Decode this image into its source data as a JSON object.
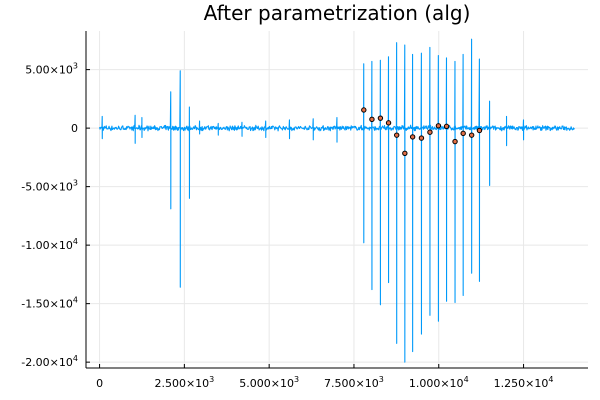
{
  "chart_data": {
    "type": "line",
    "title": "After parametrization (alg)",
    "xlabel": "",
    "ylabel": "",
    "xlim": [
      -400,
      14400
    ],
    "ylim": [
      -20500,
      8300
    ],
    "grid": true,
    "legend": "none",
    "x_ticks": [
      {
        "value": 0,
        "mant": "0",
        "exp": ""
      },
      {
        "value": 2500,
        "mant": "2.500×10",
        "exp": "3"
      },
      {
        "value": 5000,
        "mant": "5.000×10",
        "exp": "3"
      },
      {
        "value": 7500,
        "mant": "7.500×10",
        "exp": "3"
      },
      {
        "value": 10000,
        "mant": "1.000×10",
        "exp": "4"
      },
      {
        "value": 12500,
        "mant": "1.250×10",
        "exp": "4"
      }
    ],
    "y_ticks": [
      {
        "value": 5000,
        "mant": "5.00×10",
        "exp": "3"
      },
      {
        "value": 0,
        "mant": "0",
        "exp": ""
      },
      {
        "value": -5000,
        "mant": "-5.00×10",
        "exp": "3"
      },
      {
        "value": -10000,
        "mant": "-1.00×10",
        "exp": "4"
      },
      {
        "value": -15000,
        "mant": "-1.50×10",
        "exp": "4"
      },
      {
        "value": -20000,
        "mant": "-2.00×10",
        "exp": "4"
      }
    ],
    "series": [
      {
        "kind": "line",
        "color": "#009AFA",
        "x_start": 0,
        "x_end": 14000,
        "noise_amplitude": 250,
        "spikes": [
          {
            "x": 80,
            "ymax": 1000,
            "ymin": -900
          },
          {
            "x": 1050,
            "ymax": 1100,
            "ymin": -1300
          },
          {
            "x": 1250,
            "ymax": 900,
            "ymin": -800
          },
          {
            "x": 2100,
            "ymax": 3100,
            "ymin": -6900
          },
          {
            "x": 2380,
            "ymax": 4900,
            "ymin": -13600
          },
          {
            "x": 2650,
            "ymax": 1800,
            "ymin": -6000
          },
          {
            "x": 2950,
            "ymax": 600,
            "ymin": -500
          },
          {
            "x": 3500,
            "ymax": 400,
            "ymin": -600
          },
          {
            "x": 4200,
            "ymax": 500,
            "ymin": -700
          },
          {
            "x": 4900,
            "ymax": 600,
            "ymin": -800
          },
          {
            "x": 5600,
            "ymax": 700,
            "ymin": -900
          },
          {
            "x": 6300,
            "ymax": 800,
            "ymin": -1000
          },
          {
            "x": 7000,
            "ymax": 900,
            "ymin": -1200
          },
          {
            "x": 7790,
            "ymax": 5500,
            "ymin": -9800
          },
          {
            "x": 8030,
            "ymax": 5700,
            "ymin": -13800
          },
          {
            "x": 8280,
            "ymax": 5800,
            "ymin": -15100
          },
          {
            "x": 8520,
            "ymax": 6100,
            "ymin": -13200
          },
          {
            "x": 8760,
            "ymax": 7300,
            "ymin": -18400
          },
          {
            "x": 9000,
            "ymax": 7100,
            "ymin": -20000
          },
          {
            "x": 9230,
            "ymax": 6300,
            "ymin": -19100
          },
          {
            "x": 9490,
            "ymax": 6400,
            "ymin": -17600
          },
          {
            "x": 9740,
            "ymax": 6900,
            "ymin": -16000
          },
          {
            "x": 9990,
            "ymax": 6200,
            "ymin": -16500
          },
          {
            "x": 10230,
            "ymax": 6000,
            "ymin": -14800
          },
          {
            "x": 10480,
            "ymax": 5700,
            "ymin": -14900
          },
          {
            "x": 10720,
            "ymax": 6300,
            "ymin": -14300
          },
          {
            "x": 10970,
            "ymax": 7600,
            "ymin": -12400
          },
          {
            "x": 11200,
            "ymax": 5900,
            "ymin": -13100
          },
          {
            "x": 11500,
            "ymax": 2300,
            "ymin": -4900
          },
          {
            "x": 12000,
            "ymax": 1000,
            "ymin": -1500
          },
          {
            "x": 12500,
            "ymax": 700,
            "ymin": -1000
          }
        ]
      },
      {
        "kind": "scatter",
        "color": "#E26F46",
        "stroke": "#000000",
        "points": [
          {
            "x": 7790,
            "y": 1550
          },
          {
            "x": 8030,
            "y": 750
          },
          {
            "x": 8280,
            "y": 850
          },
          {
            "x": 8520,
            "y": 450
          },
          {
            "x": 8760,
            "y": -600
          },
          {
            "x": 9000,
            "y": -2150
          },
          {
            "x": 9230,
            "y": -750
          },
          {
            "x": 9490,
            "y": -850
          },
          {
            "x": 9740,
            "y": -350
          },
          {
            "x": 9990,
            "y": 200
          },
          {
            "x": 10230,
            "y": 150
          },
          {
            "x": 10480,
            "y": -1150
          },
          {
            "x": 10720,
            "y": -450
          },
          {
            "x": 10970,
            "y": -600
          },
          {
            "x": 11200,
            "y": -200
          }
        ]
      }
    ]
  }
}
